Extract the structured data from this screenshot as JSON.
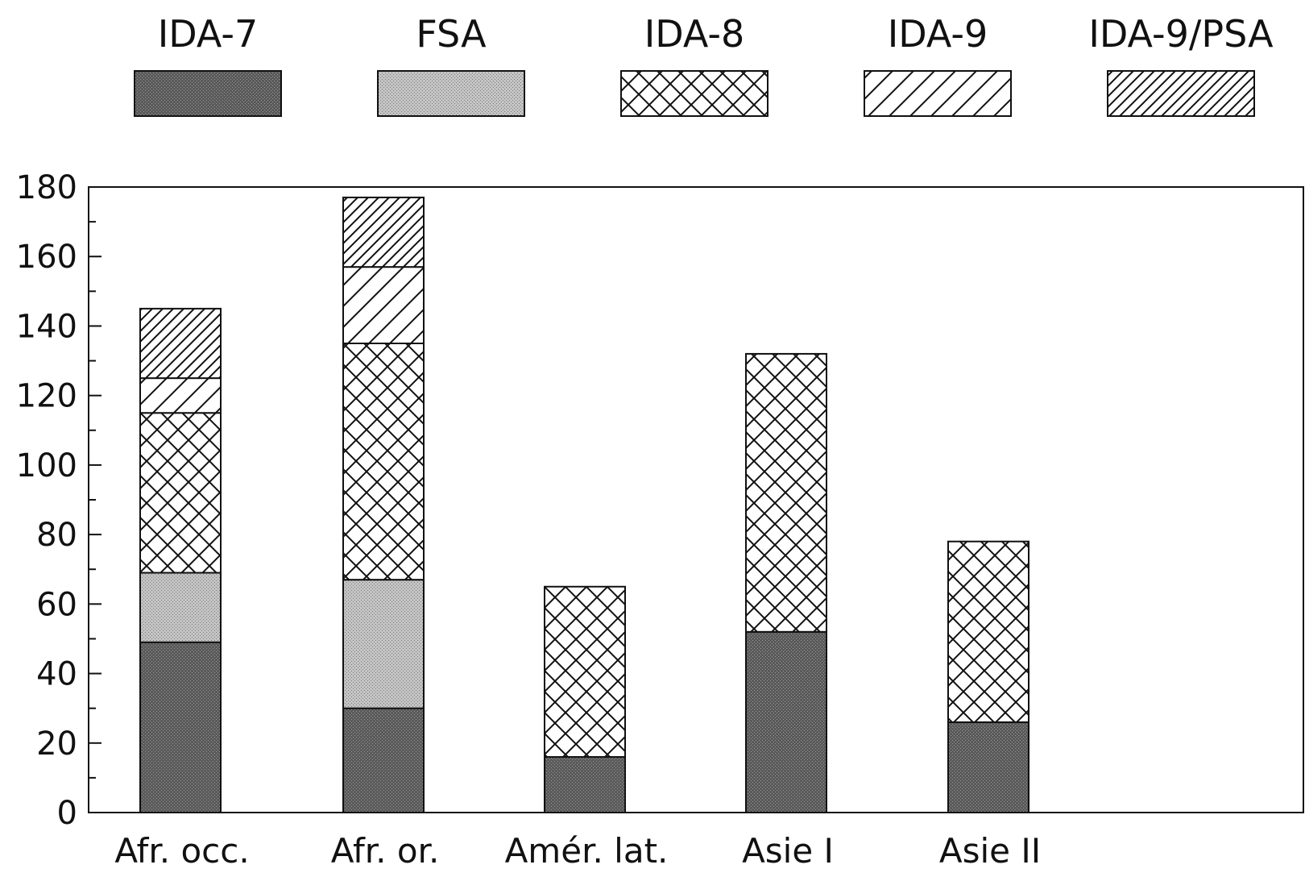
{
  "chart_data": {
    "type": "bar",
    "stacked": true,
    "categories": [
      "Afr. occ.",
      "Afr. or.",
      "Amér. lat.",
      "Asie I",
      "Asie II"
    ],
    "series": [
      {
        "name": "IDA-7",
        "values": [
          49,
          30,
          16,
          52,
          26
        ],
        "pattern": "dark-stipple"
      },
      {
        "name": "FSA",
        "values": [
          20,
          37,
          0,
          0,
          0
        ],
        "pattern": "light-stipple"
      },
      {
        "name": "IDA-8",
        "values": [
          46,
          68,
          49,
          80,
          52
        ],
        "pattern": "crosshatch"
      },
      {
        "name": "IDA-9",
        "values": [
          10,
          22,
          0,
          0,
          0
        ],
        "pattern": "wide-diagonal"
      },
      {
        "name": "IDA-9/PSA",
        "values": [
          20,
          20,
          0,
          0,
          0
        ],
        "pattern": "dense-diagonal"
      }
    ],
    "yticks": [
      "0",
      "20",
      "40",
      "60",
      "80",
      "100",
      "120",
      "140",
      "160",
      "180"
    ],
    "ylim": [
      0,
      180
    ],
    "legend": "top",
    "grid": false,
    "colors": {
      "dark": "#555555",
      "light": "#b8b8b8",
      "line": "#111111"
    }
  }
}
